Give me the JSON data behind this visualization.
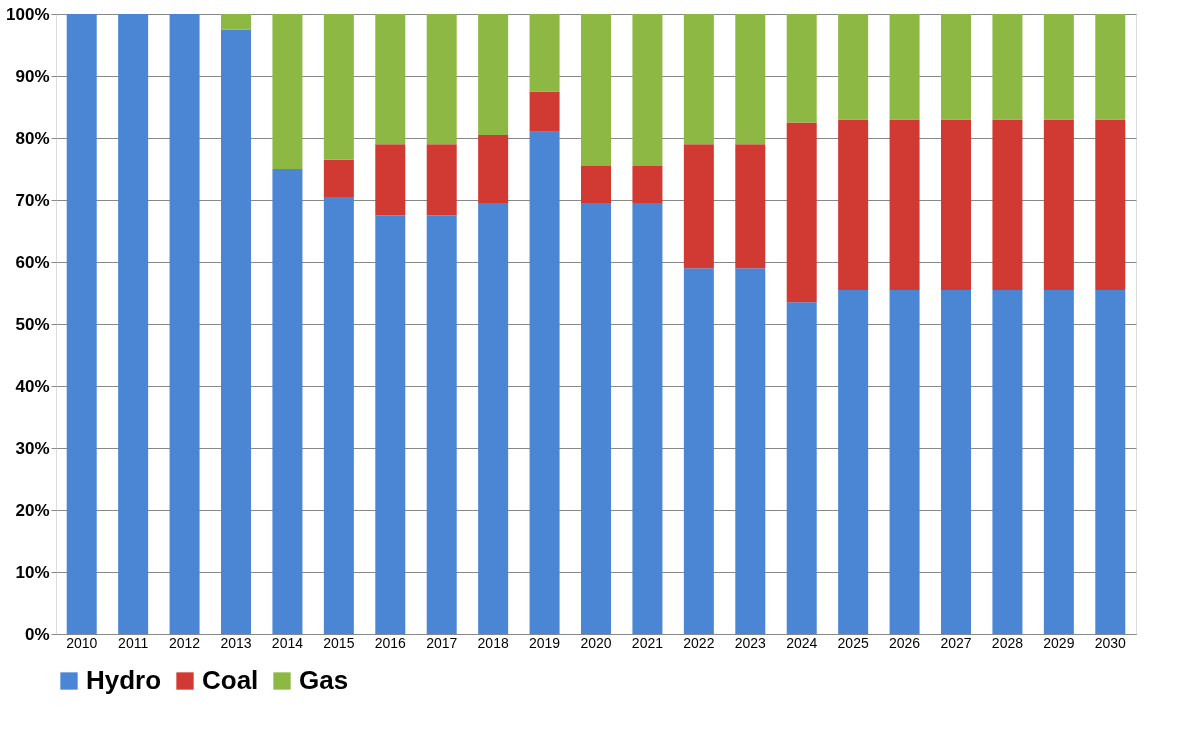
{
  "chart_data": {
    "type": "bar",
    "stacked": true,
    "categories": [
      "2010",
      "2011",
      "2012",
      "2013",
      "2014",
      "2015",
      "2016",
      "2017",
      "2018",
      "2019",
      "2020",
      "2021",
      "2022",
      "2023",
      "2024",
      "2025",
      "2026",
      "2027",
      "2028",
      "2029",
      "2030"
    ],
    "series": [
      {
        "name": "Hydro",
        "color": "#4a86d4",
        "values": [
          100,
          100,
          100,
          97.5,
          75,
          70.5,
          67.5,
          67.5,
          69.5,
          81,
          69.5,
          69.5,
          59,
          59,
          53.5,
          55.5,
          55.5,
          55.5,
          55.5,
          55.5,
          55.5
        ]
      },
      {
        "name": "Coal",
        "color": "#d03a33",
        "values": [
          0,
          0,
          0,
          0,
          0,
          6,
          11.5,
          11.5,
          11,
          6.5,
          6,
          6,
          20,
          20,
          29,
          27.5,
          27.5,
          27.5,
          27.5,
          27.5,
          27.5
        ]
      },
      {
        "name": "Gas",
        "color": "#8db843",
        "values": [
          0,
          0,
          0,
          2.5,
          25,
          23.5,
          21,
          21,
          19.5,
          12.5,
          24.5,
          24.5,
          21,
          21,
          17.5,
          17,
          17,
          17,
          17,
          17,
          17
        ]
      }
    ],
    "ylim": [
      0,
      100
    ],
    "yticks": [
      {
        "value": 0,
        "label": "0%"
      },
      {
        "value": 10,
        "label": "10%"
      },
      {
        "value": 20,
        "label": "20%"
      },
      {
        "value": 30,
        "label": "30%"
      },
      {
        "value": 40,
        "label": "40%"
      },
      {
        "value": 50,
        "label": "50%"
      },
      {
        "value": 60,
        "label": "60%"
      },
      {
        "value": 70,
        "label": "70%"
      },
      {
        "value": 80,
        "label": "80%"
      },
      {
        "value": 90,
        "label": "90%"
      },
      {
        "value": 100,
        "label": "100%"
      }
    ],
    "grid": "y",
    "legend": "bottom"
  }
}
